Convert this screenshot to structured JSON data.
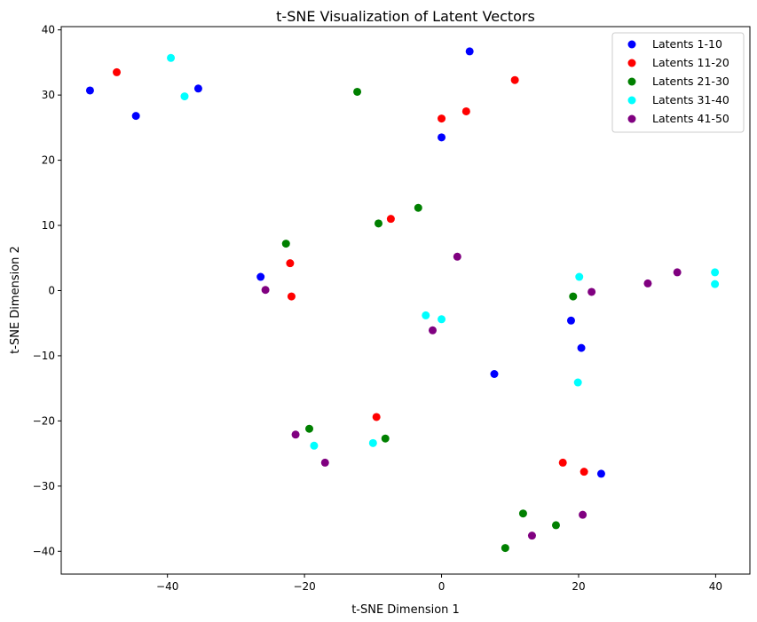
{
  "chart_data": {
    "type": "scatter",
    "title": "t-SNE Visualization of Latent Vectors",
    "xlabel": "t-SNE Dimension 1",
    "ylabel": "t-SNE Dimension 2",
    "xlim": [
      -55.5,
      45.0
    ],
    "ylim": [
      -43.5,
      40.5
    ],
    "xticks": [
      -40,
      -20,
      0,
      20,
      40
    ],
    "yticks": [
      -40,
      -30,
      -20,
      -10,
      0,
      10,
      20,
      30,
      40
    ],
    "grid": false,
    "legend_position": "top-right",
    "series": [
      {
        "name": "Latents 1-10",
        "color": "#0000ff",
        "points": [
          [
            -51.3,
            30.7
          ],
          [
            -44.6,
            26.8
          ],
          [
            -35.5,
            31.0
          ],
          [
            4.1,
            36.7
          ],
          [
            0.0,
            23.5
          ],
          [
            -26.4,
            2.1
          ],
          [
            18.9,
            -4.6
          ],
          [
            20.4,
            -8.8
          ],
          [
            7.7,
            -12.8
          ],
          [
            23.3,
            -28.1
          ]
        ]
      },
      {
        "name": "Latents 11-20",
        "color": "#ff0000",
        "points": [
          [
            -47.4,
            33.5
          ],
          [
            10.7,
            32.3
          ],
          [
            0.0,
            26.4
          ],
          [
            3.6,
            27.5
          ],
          [
            -7.4,
            11.0
          ],
          [
            -22.1,
            4.2
          ],
          [
            -21.9,
            -0.9
          ],
          [
            -9.5,
            -19.4
          ],
          [
            17.7,
            -26.4
          ],
          [
            20.8,
            -27.8
          ]
        ]
      },
      {
        "name": "Latents 21-30",
        "color": "#008000",
        "points": [
          [
            -12.3,
            30.5
          ],
          [
            -3.4,
            12.7
          ],
          [
            -9.2,
            10.3
          ],
          [
            -22.7,
            7.2
          ],
          [
            19.2,
            -0.9
          ],
          [
            -19.3,
            -21.2
          ],
          [
            -8.2,
            -22.7
          ],
          [
            11.9,
            -34.2
          ],
          [
            16.7,
            -36.0
          ],
          [
            9.3,
            -39.5
          ]
        ]
      },
      {
        "name": "Latents 31-40",
        "color": "#00ffff",
        "points": [
          [
            -39.5,
            35.7
          ],
          [
            -37.5,
            29.8
          ],
          [
            20.1,
            2.1
          ],
          [
            39.9,
            2.8
          ],
          [
            39.9,
            1.0
          ],
          [
            -2.3,
            -3.8
          ],
          [
            0.0,
            -4.4
          ],
          [
            19.9,
            -14.1
          ],
          [
            -18.6,
            -23.8
          ],
          [
            -10.0,
            -23.4
          ]
        ]
      },
      {
        "name": "Latents 41-50",
        "color": "#800080",
        "points": [
          [
            -25.7,
            0.1
          ],
          [
            2.3,
            5.2
          ],
          [
            21.9,
            -0.2
          ],
          [
            30.1,
            1.1
          ],
          [
            34.4,
            2.8
          ],
          [
            -1.3,
            -6.1
          ],
          [
            -21.3,
            -22.1
          ],
          [
            -17.0,
            -26.4
          ],
          [
            13.2,
            -37.6
          ],
          [
            20.6,
            -34.4
          ]
        ]
      }
    ]
  }
}
